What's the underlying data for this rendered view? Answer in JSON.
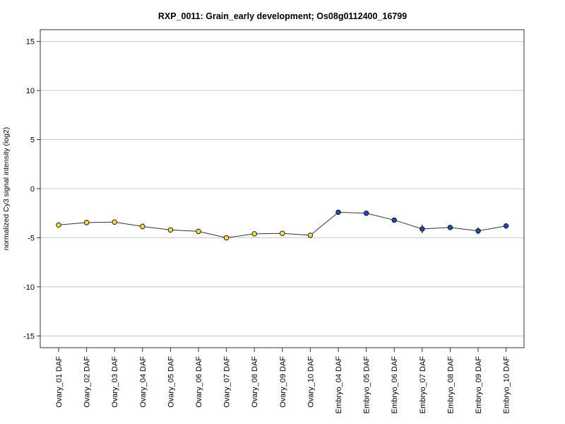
{
  "chart_data": {
    "type": "line",
    "title": "RXP_0011: Grain_early development; Os08g0112400_16799",
    "xlabel": "",
    "ylabel": "normalized Cy3 signal intensity (log2)",
    "ylim": [
      -16.2,
      16.2
    ],
    "yticks": [
      15,
      10,
      5,
      0,
      -5,
      -10,
      -15
    ],
    "ytick_labels": [
      "15",
      "10",
      "5",
      "0",
      "-5",
      "-10",
      "-15"
    ],
    "grid": "horizontal",
    "categories": [
      "Ovary_01 DAF",
      "Ovary_02 DAF",
      "Ovary_03 DAF",
      "Ovary_04 DAF",
      "Ovary_05 DAF",
      "Ovary_06 DAF",
      "Ovary_07 DAF",
      "Ovary_08 DAF",
      "Ovary_09 DAF",
      "Ovary_10 DAF",
      "Embryo_04 DAF",
      "Embryo_05 DAF",
      "Embryo_06 DAF",
      "Embryo_07 DAF",
      "Embryo_08 DAF",
      "Embryo_09 DAF",
      "Embryo_10 DAF"
    ],
    "values": [
      -3.7,
      -3.45,
      -3.4,
      -3.85,
      -4.2,
      -4.35,
      -5.0,
      -4.6,
      -4.55,
      -4.75,
      -2.4,
      -2.5,
      -3.2,
      -4.1,
      -3.95,
      -4.3,
      -3.8
    ],
    "errors": [
      0.15,
      0.15,
      0.12,
      0.3,
      0.15,
      0.12,
      0.15,
      0.15,
      0.15,
      0.12,
      0.12,
      0.12,
      0.15,
      0.45,
      0.15,
      0.35,
      0.2
    ],
    "point_colors": [
      "#f5dc3c",
      "#f5dc3c",
      "#f5dc3c",
      "#f5dc3c",
      "#f5dc3c",
      "#f5dc3c",
      "#f5dc3c",
      "#f5dc3c",
      "#f5dc3c",
      "#f5dc3c",
      "#2548b8",
      "#2548b8",
      "#2548b8",
      "#2548b8",
      "#2548b8",
      "#2548b8",
      "#2548b8"
    ],
    "line_color": "#333333",
    "grid_color": "#c8c8c8"
  }
}
